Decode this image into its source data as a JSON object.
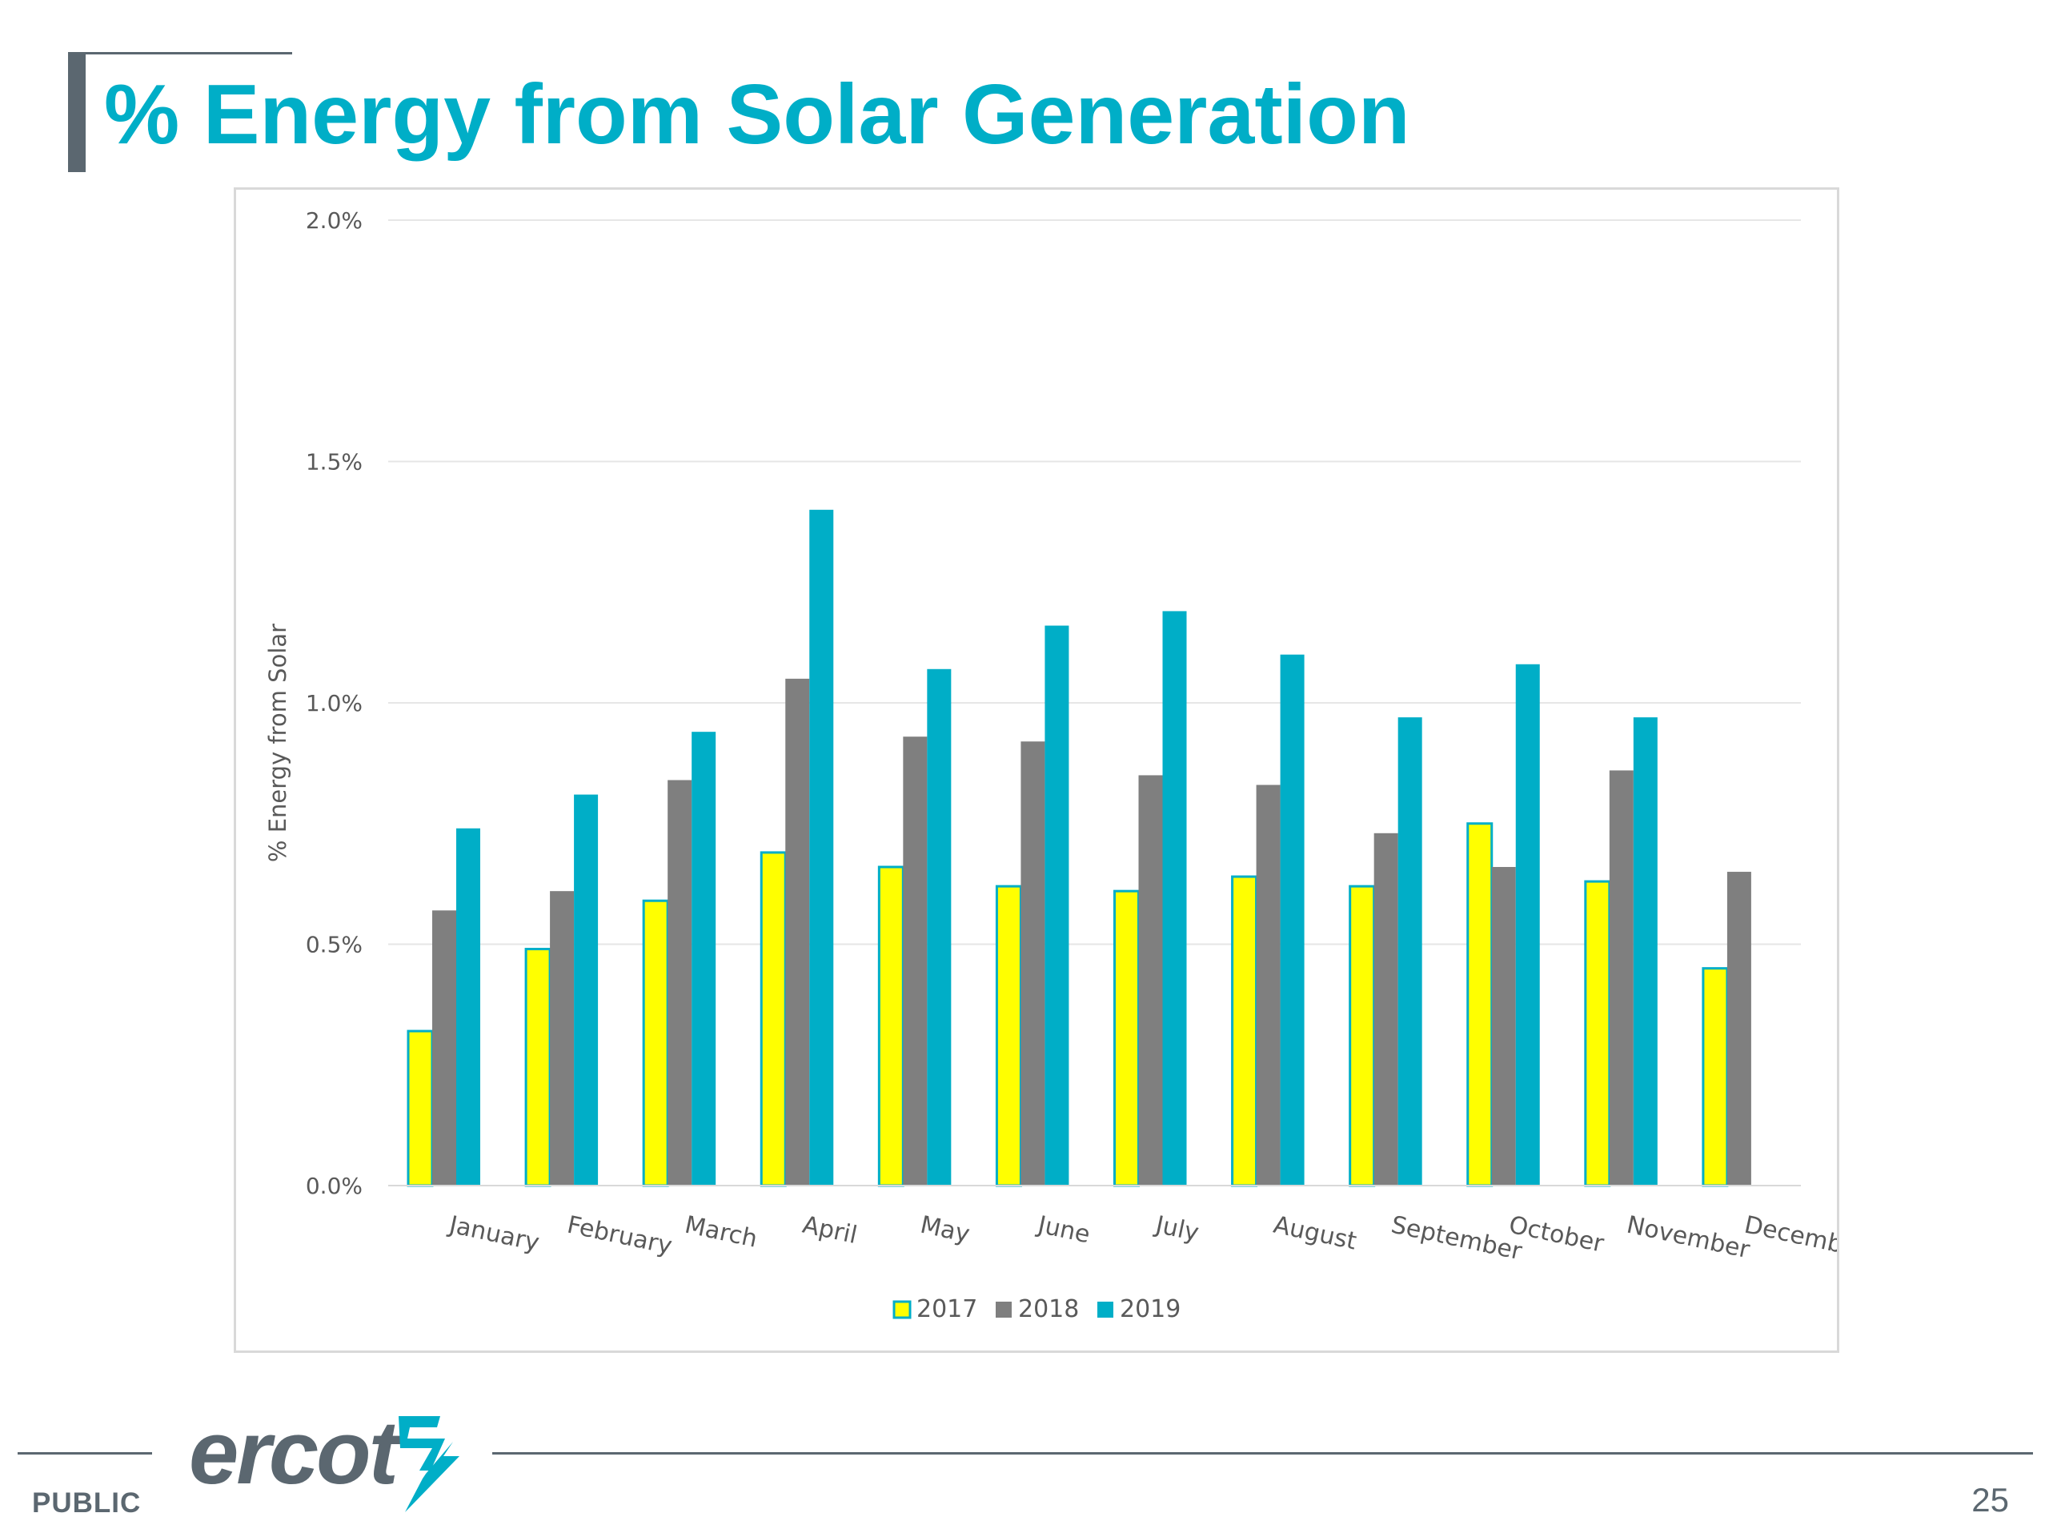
{
  "title": "% Energy from Solar Generation",
  "footer": {
    "classification": "PUBLIC",
    "page_number": "25",
    "logo_text": "ercot"
  },
  "colors": {
    "title": "#00aec7",
    "accent_gray": "#5b6770",
    "series_2017": "#ffff00",
    "series_2017_border": "#00aec7",
    "series_2018": "#7f7f7f",
    "series_2019": "#00aec7"
  },
  "chart_data": {
    "type": "bar",
    "title": "",
    "xlabel": "",
    "ylabel": "% Energy from Solar",
    "ylim": [
      0,
      2.0
    ],
    "yticks": [
      0,
      0.5,
      1.0,
      1.5,
      2.0
    ],
    "ytick_labels": [
      "0.0%",
      "0.5%",
      "1.0%",
      "1.5%",
      "2.0%"
    ],
    "grid": true,
    "legend_position": "bottom",
    "categories": [
      "January",
      "February",
      "March",
      "April",
      "May",
      "June",
      "July",
      "August",
      "September",
      "October",
      "November",
      "December"
    ],
    "series": [
      {
        "name": "2017",
        "color": "#ffff00",
        "border": "#00aec7",
        "values": [
          0.32,
          0.49,
          0.59,
          0.69,
          0.66,
          0.62,
          0.61,
          0.64,
          0.62,
          0.75,
          0.63,
          0.45
        ]
      },
      {
        "name": "2018",
        "color": "#7f7f7f",
        "border": null,
        "values": [
          0.57,
          0.61,
          0.84,
          1.05,
          0.93,
          0.92,
          0.85,
          0.83,
          0.73,
          0.66,
          0.86,
          0.65
        ]
      },
      {
        "name": "2019",
        "color": "#00aec7",
        "border": null,
        "values": [
          0.74,
          0.81,
          0.94,
          1.4,
          1.07,
          1.16,
          1.19,
          1.1,
          0.97,
          1.08,
          0.97,
          null
        ]
      }
    ]
  }
}
